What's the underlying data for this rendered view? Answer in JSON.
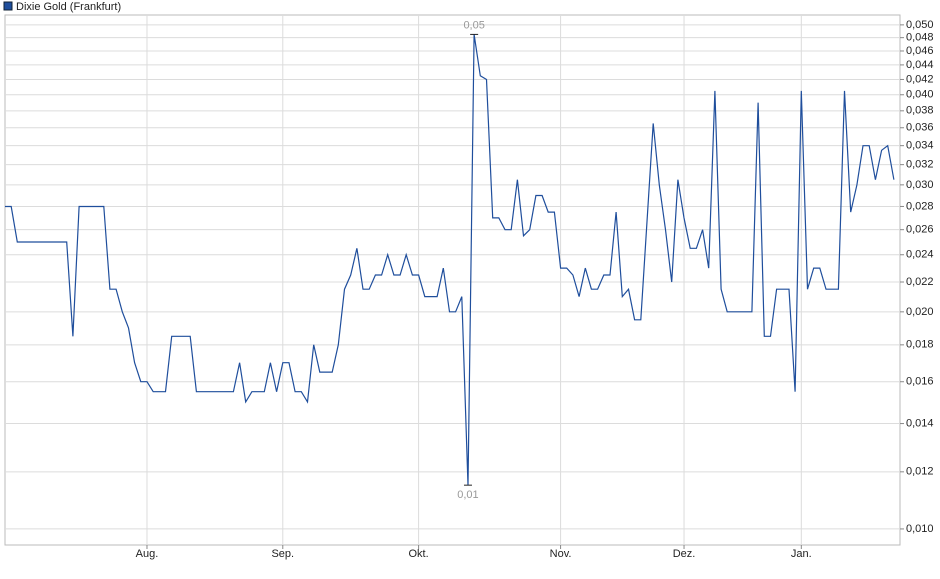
{
  "chart_data": {
    "type": "line",
    "log_scale": true,
    "grid": true,
    "legend": "top-left",
    "x": [
      0,
      1,
      2,
      10,
      11,
      12,
      16,
      17,
      18,
      19,
      20,
      21,
      22,
      23,
      24,
      26,
      27,
      30,
      31,
      37,
      38,
      39,
      40,
      42,
      43,
      44,
      45,
      46,
      47,
      48,
      49,
      50,
      51,
      53,
      54,
      55,
      56,
      57,
      58,
      59,
      60,
      61,
      62,
      63,
      64,
      65,
      66,
      67,
      68,
      70,
      71,
      72,
      73,
      74,
      75,
      76,
      77,
      78,
      79,
      80,
      81,
      82,
      83,
      84,
      85,
      86,
      87,
      88,
      89,
      90,
      91,
      92,
      93,
      94,
      95,
      96,
      97,
      98,
      99,
      100,
      101,
      102,
      103,
      105,
      106,
      107,
      108,
      109,
      110,
      111,
      112,
      113,
      114,
      115,
      116,
      117,
      121,
      122,
      123,
      124,
      125,
      127,
      128,
      129,
      130,
      131,
      132,
      133,
      135,
      136,
      137,
      138,
      139,
      140,
      141,
      142,
      143,
      144
    ],
    "xlim": [
      0,
      144.5
    ],
    "xticks": [
      {
        "value": 23,
        "label": "Aug."
      },
      {
        "value": 45,
        "label": "Sep."
      },
      {
        "value": 67,
        "label": "Okt."
      },
      {
        "value": 90,
        "label": "Nov."
      },
      {
        "value": 110,
        "label": "Dez."
      },
      {
        "value": 129,
        "label": "Jan."
      }
    ],
    "series": [
      {
        "name": "Dixie Gold (Frankfurt)",
        "color": "#1f4e9c",
        "values": [
          0.028,
          0.028,
          0.025,
          0.025,
          0.0185,
          0.028,
          0.028,
          0.0215,
          0.0215,
          0.02,
          0.019,
          0.017,
          0.016,
          0.016,
          0.0155,
          0.0155,
          0.0185,
          0.0185,
          0.0155,
          0.0155,
          0.017,
          0.015,
          0.0155,
          0.0155,
          0.017,
          0.0155,
          0.017,
          0.017,
          0.0155,
          0.0155,
          0.015,
          0.018,
          0.0165,
          0.0165,
          0.018,
          0.0215,
          0.0225,
          0.0245,
          0.0215,
          0.0215,
          0.0225,
          0.0225,
          0.024,
          0.0225,
          0.0225,
          0.024,
          0.0225,
          0.0225,
          0.021,
          0.021,
          0.023,
          0.02,
          0.02,
          0.021,
          0.0115,
          0.0485,
          0.0425,
          0.042,
          0.027,
          0.027,
          0.026,
          0.026,
          0.0305,
          0.0255,
          0.026,
          0.029,
          0.029,
          0.0275,
          0.0275,
          0.023,
          0.023,
          0.0225,
          0.021,
          0.023,
          0.0215,
          0.0215,
          0.0225,
          0.0225,
          0.0275,
          0.021,
          0.0215,
          0.0195,
          0.0195,
          0.0365,
          0.03,
          0.026,
          0.022,
          0.0305,
          0.027,
          0.0245,
          0.0245,
          0.026,
          0.023,
          0.0405,
          0.0215,
          0.02,
          0.02,
          0.039,
          0.0185,
          0.0185,
          0.0215,
          0.0215,
          0.0155,
          0.0405,
          0.0215,
          0.023,
          0.023,
          0.0215,
          0.0215,
          0.0405,
          0.0275,
          0.03,
          0.034,
          0.034,
          0.0305,
          0.0335,
          0.034,
          0.0305
        ]
      }
    ],
    "ylim": [
      0.0095,
      0.0516
    ],
    "yticks": [
      {
        "value": 0.01,
        "label": "0,010"
      },
      {
        "value": 0.012,
        "label": "0,012"
      },
      {
        "value": 0.014,
        "label": "0,014"
      },
      {
        "value": 0.016,
        "label": "0,016"
      },
      {
        "value": 0.018,
        "label": "0,018"
      },
      {
        "value": 0.02,
        "label": "0,020"
      },
      {
        "value": 0.022,
        "label": "0,022"
      },
      {
        "value": 0.024,
        "label": "0,024"
      },
      {
        "value": 0.026,
        "label": "0,026"
      },
      {
        "value": 0.028,
        "label": "0,028"
      },
      {
        "value": 0.03,
        "label": "0,030"
      },
      {
        "value": 0.032,
        "label": "0,032"
      },
      {
        "value": 0.034,
        "label": "0,034"
      },
      {
        "value": 0.036,
        "label": "0,036"
      },
      {
        "value": 0.038,
        "label": "0,038"
      },
      {
        "value": 0.04,
        "label": "0,040"
      },
      {
        "value": 0.042,
        "label": "0,042"
      },
      {
        "value": 0.044,
        "label": "0,044"
      },
      {
        "value": 0.046,
        "label": "0,046"
      },
      {
        "value": 0.048,
        "label": "0,048"
      },
      {
        "value": 0.05,
        "label": "0,050"
      }
    ],
    "annotations": [
      {
        "label": "0,05",
        "x": 76,
        "value": 0.0485
      },
      {
        "label": "0,01",
        "x": 75,
        "value": 0.0115
      }
    ]
  }
}
